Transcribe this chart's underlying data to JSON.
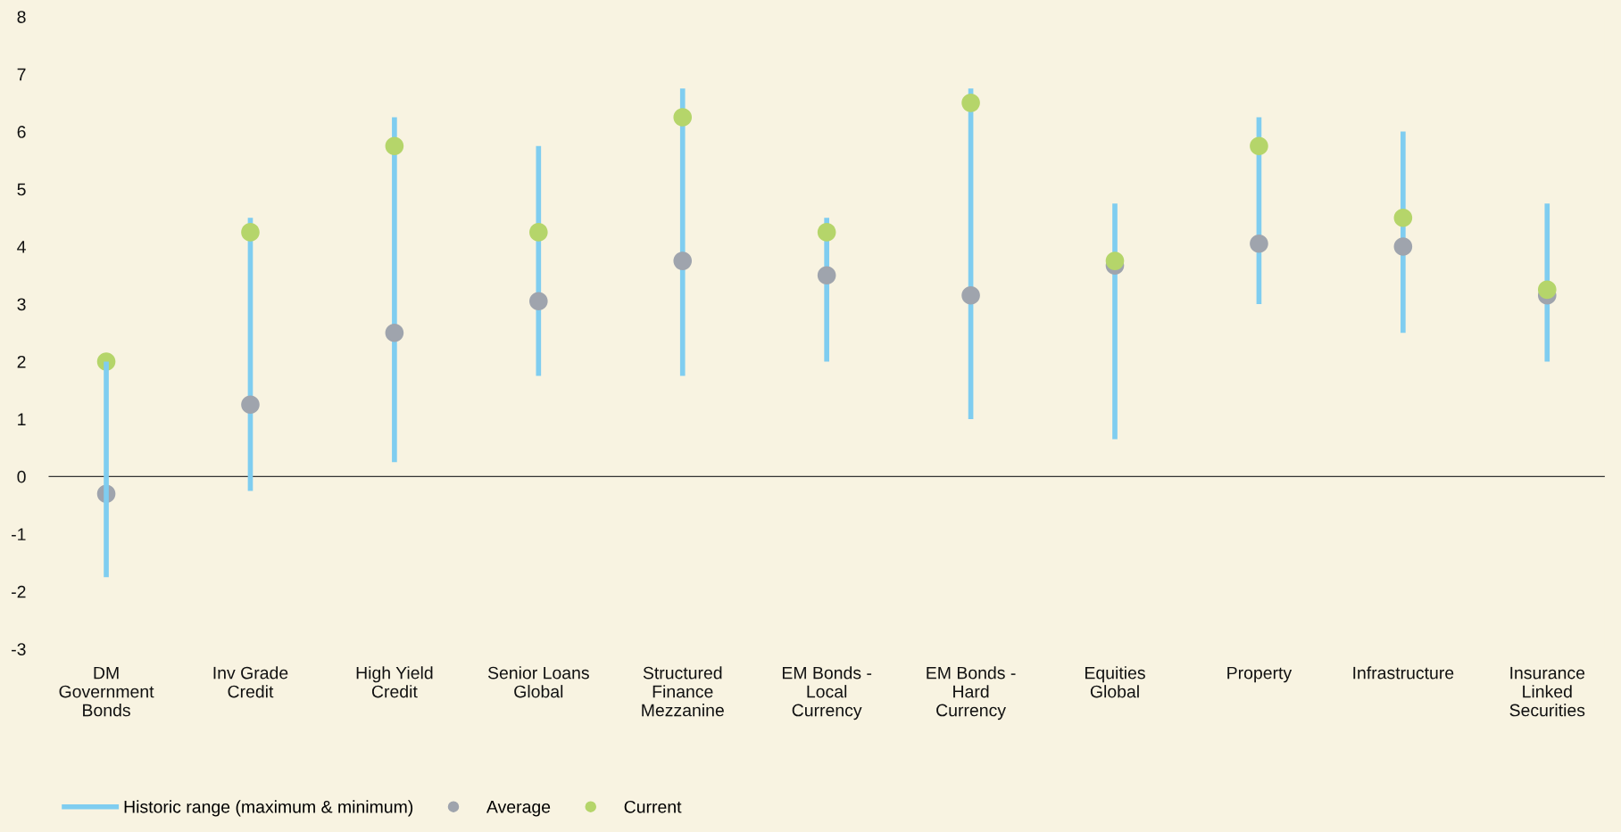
{
  "chart_data": {
    "type": "bar",
    "categories": [
      "DM\nGovernment\nBonds",
      "Inv Grade\nCredit",
      "High Yield\nCredit",
      "Senior Loans\nGlobal",
      "Structured\nFinance\nMezzanine",
      "EM Bonds -\nLocal\nCurrency",
      "EM Bonds -\nHard\nCurrency",
      "Equities\nGlobal",
      "Property",
      "Infrastructure",
      "Insurance\nLinked\nSecurities"
    ],
    "series": [
      {
        "name": "Historic range (maximum & minimum)",
        "color": "#7fcdf0",
        "base": [
          -1.75,
          -0.25,
          0.25,
          1.75,
          1.75,
          2.0,
          1.0,
          0.65,
          3.0,
          2.5,
          2.0
        ],
        "values": [
          3.75,
          4.75,
          6.0,
          4.0,
          5.0,
          2.5,
          5.75,
          4.1,
          3.25,
          3.5,
          2.75
        ]
      },
      {
        "name": "Average",
        "type": "scatter",
        "color": "#9fa4ad",
        "marker": "circle",
        "x": [
          "DM\nGovernment\nBonds",
          "Inv Grade\nCredit",
          "High Yield\nCredit",
          "Senior Loans\nGlobal",
          "Structured\nFinance\nMezzanine",
          "EM Bonds -\nLocal\nCurrency",
          "EM Bonds -\nHard\nCurrency",
          "Equities\nGlobal",
          "Property",
          "Infrastructure",
          "Insurance\nLinked\nSecurities"
        ],
        "values": [
          -0.3,
          1.25,
          2.5,
          3.05,
          3.75,
          3.5,
          3.15,
          3.67,
          4.05,
          4.0,
          3.15
        ]
      },
      {
        "name": "Current",
        "type": "scatter",
        "color": "#b5d56a",
        "marker": "circle",
        "x": [
          "DM\nGovernment\nBonds",
          "Inv Grade\nCredit",
          "High Yield\nCredit",
          "Senior Loans\nGlobal",
          "Structured\nFinance\nMezzanine",
          "EM Bonds -\nLocal\nCurrency",
          "EM Bonds -\nHard\nCurrency",
          "Equities\nGlobal",
          "Property",
          "Infrastructure",
          "Insurance\nLinked\nSecurities"
        ],
        "values": [
          2.0,
          4.25,
          5.75,
          4.25,
          6.25,
          4.25,
          6.5,
          3.75,
          5.75,
          4.5,
          3.25
        ]
      }
    ],
    "ylim": [
      -3,
      8
    ],
    "yticks": [
      -3,
      -2,
      -1,
      0,
      1,
      2,
      3,
      4,
      5,
      6,
      7,
      8
    ],
    "ref_lines": [
      {
        "axis": "y",
        "value": 0,
        "color": "#333333"
      }
    ],
    "grid": false,
    "legend": "bottom left"
  }
}
